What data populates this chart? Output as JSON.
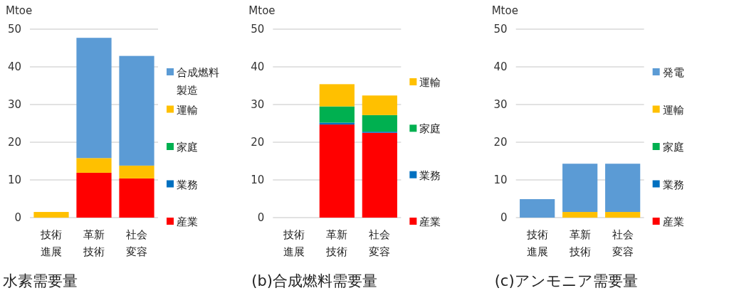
{
  "chart_data": [
    {
      "type": "bar",
      "stacked": true,
      "title": "水素需要量",
      "ylabel": "Mtoe",
      "categories": [
        "技術進展",
        "革新技術",
        "社会変容"
      ],
      "ylim": [
        0,
        50
      ],
      "yticks": [
        0,
        10,
        20,
        30,
        40,
        50
      ],
      "grid": "y",
      "legend": "right",
      "series": [
        {
          "name": "産業",
          "color": "#ff0000",
          "values": [
            0,
            11.9,
            10.4
          ]
        },
        {
          "name": "業務",
          "color": "#0070c0",
          "values": [
            0,
            0,
            0
          ]
        },
        {
          "name": "家庭",
          "color": "#00b050",
          "values": [
            0,
            0,
            0
          ]
        },
        {
          "name": "運輸",
          "color": "#ffc000",
          "values": [
            1.5,
            3.9,
            3.4
          ]
        },
        {
          "name": "合成燃料製造",
          "color": "#5b9bd5",
          "values": [
            0,
            31.9,
            29.1
          ]
        }
      ]
    },
    {
      "type": "bar",
      "stacked": true,
      "title": "(b)合成燃料需要量",
      "ylabel": "Mtoe",
      "categories": [
        "技術進展",
        "革新技術",
        "社会変容"
      ],
      "ylim": [
        0,
        50
      ],
      "yticks": [
        0,
        10,
        20,
        30,
        40,
        50
      ],
      "grid": "y",
      "legend": "right",
      "series": [
        {
          "name": "産業",
          "color": "#ff0000",
          "values": [
            0,
            24.7,
            22.5
          ]
        },
        {
          "name": "業務",
          "color": "#0070c0",
          "values": [
            0,
            0.5,
            0.3
          ]
        },
        {
          "name": "家庭",
          "color": "#00b050",
          "values": [
            0,
            4.3,
            4.4
          ]
        },
        {
          "name": "運輸",
          "color": "#ffc000",
          "values": [
            0,
            5.9,
            5.2
          ]
        }
      ]
    },
    {
      "type": "bar",
      "stacked": true,
      "title": "(c)アンモニア需要量",
      "ylabel": "Mtoe",
      "categories": [
        "技術進展",
        "革新技術",
        "社会変容"
      ],
      "ylim": [
        0,
        50
      ],
      "yticks": [
        0,
        10,
        20,
        30,
        40,
        50
      ],
      "grid": "y",
      "legend": "right",
      "series": [
        {
          "name": "産業",
          "color": "#ff0000",
          "values": [
            0,
            0,
            0
          ]
        },
        {
          "name": "業務",
          "color": "#0070c0",
          "values": [
            0,
            0,
            0
          ]
        },
        {
          "name": "家庭",
          "color": "#00b050",
          "values": [
            0,
            0,
            0
          ]
        },
        {
          "name": "運輸",
          "color": "#ffc000",
          "values": [
            0,
            1.5,
            1.5
          ]
        },
        {
          "name": "発電",
          "color": "#5b9bd5",
          "values": [
            4.9,
            12.8,
            12.8
          ]
        }
      ]
    }
  ]
}
